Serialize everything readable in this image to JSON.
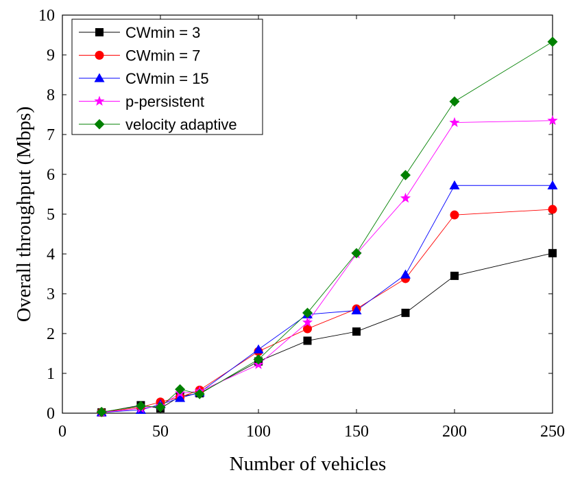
{
  "chart_data": {
    "type": "line",
    "xlabel": "Number of vehicles",
    "ylabel": "Overall throughput (Mbps)",
    "xlim": [
      0,
      250
    ],
    "ylim": [
      0,
      10
    ],
    "xticks": [
      0,
      50,
      100,
      150,
      200,
      250
    ],
    "yticks": [
      0,
      1,
      2,
      3,
      4,
      5,
      6,
      7,
      8,
      9,
      10
    ],
    "legend": "top-left",
    "grid": false,
    "series": [
      {
        "name": "CWmin = 3",
        "color": "#000000",
        "marker": "square",
        "x": [
          20,
          40,
          50,
          60,
          70,
          100,
          125,
          150,
          175,
          200,
          250
        ],
        "y": [
          0.02,
          0.2,
          0.12,
          0.42,
          0.5,
          1.3,
          1.82,
          2.05,
          2.52,
          3.45,
          4.02
        ]
      },
      {
        "name": "CWmin = 7",
        "color": "#ff0000",
        "marker": "circle",
        "x": [
          20,
          40,
          50,
          60,
          70,
          100,
          125,
          150,
          175,
          200,
          250
        ],
        "y": [
          0.02,
          0.15,
          0.28,
          0.4,
          0.58,
          1.55,
          2.12,
          2.62,
          3.38,
          4.98,
          5.12
        ]
      },
      {
        "name": "CWmin = 15",
        "color": "#0000ff",
        "marker": "triangle",
        "x": [
          20,
          40,
          50,
          60,
          70,
          100,
          125,
          150,
          175,
          200,
          250
        ],
        "y": [
          0.02,
          0.08,
          0.22,
          0.38,
          0.52,
          1.6,
          2.48,
          2.58,
          3.48,
          5.72,
          5.72
        ]
      },
      {
        "name": "p-persistent",
        "color": "#ff00ff",
        "marker": "star",
        "x": [
          20,
          40,
          50,
          60,
          70,
          100,
          125,
          150,
          175,
          200,
          250
        ],
        "y": [
          0.02,
          0.12,
          0.18,
          0.5,
          0.55,
          1.22,
          2.28,
          4.0,
          5.4,
          7.3,
          7.35
        ]
      },
      {
        "name": "velocity adaptive",
        "color": "#008000",
        "marker": "diamond",
        "x": [
          20,
          40,
          50,
          60,
          70,
          100,
          125,
          150,
          175,
          200,
          250
        ],
        "y": [
          0.03,
          0.18,
          0.15,
          0.6,
          0.48,
          1.35,
          2.52,
          4.02,
          5.98,
          7.83,
          9.33
        ]
      }
    ]
  }
}
